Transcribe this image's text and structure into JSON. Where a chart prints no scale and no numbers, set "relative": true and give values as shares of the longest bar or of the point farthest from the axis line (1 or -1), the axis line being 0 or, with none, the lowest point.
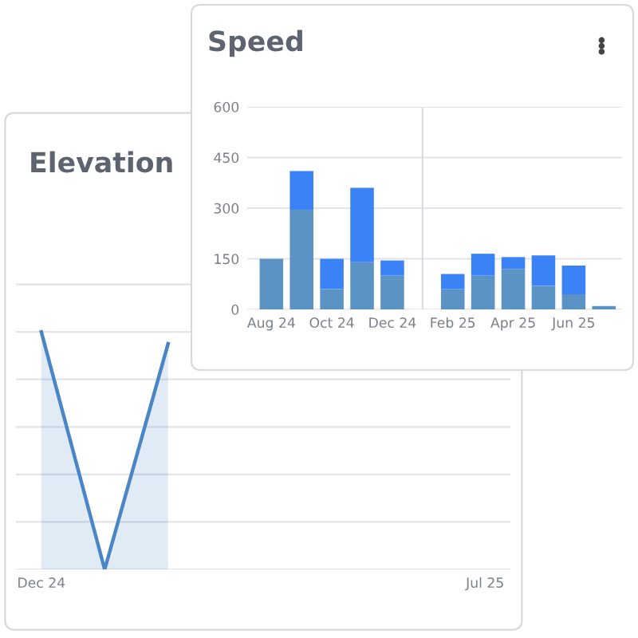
{
  "chart_data": [
    {
      "type": "bar",
      "title": "Speed",
      "stacked": true,
      "grid": "y",
      "ylim": [
        0,
        600
      ],
      "yticks": [
        0,
        150,
        300,
        450,
        600
      ],
      "categories": [
        "Aug 24",
        null,
        "Oct 24",
        null,
        "Dec 24",
        null,
        "Feb 25",
        null,
        "Apr 25",
        null,
        "Jun 25",
        null
      ],
      "series": [
        {
          "color": "#5b93c4",
          "values": [
            150,
            295,
            60,
            140,
            100,
            null,
            60,
            100,
            120,
            70,
            45,
            10
          ]
        },
        {
          "color": "#3b82f6",
          "values": [
            0,
            115,
            90,
            220,
            45,
            null,
            45,
            65,
            35,
            90,
            85,
            0
          ]
        }
      ]
    },
    {
      "type": "area",
      "title": "Elevation",
      "relative": true,
      "grid": "y",
      "categories": [
        "Dec 24",
        null,
        null,
        null,
        null,
        null,
        null,
        "Jul 25"
      ],
      "series": [
        {
          "color": "#4a86c5",
          "values": [
            1,
            0,
            0.95,
            null,
            null,
            null,
            null,
            null
          ]
        }
      ]
    }
  ]
}
